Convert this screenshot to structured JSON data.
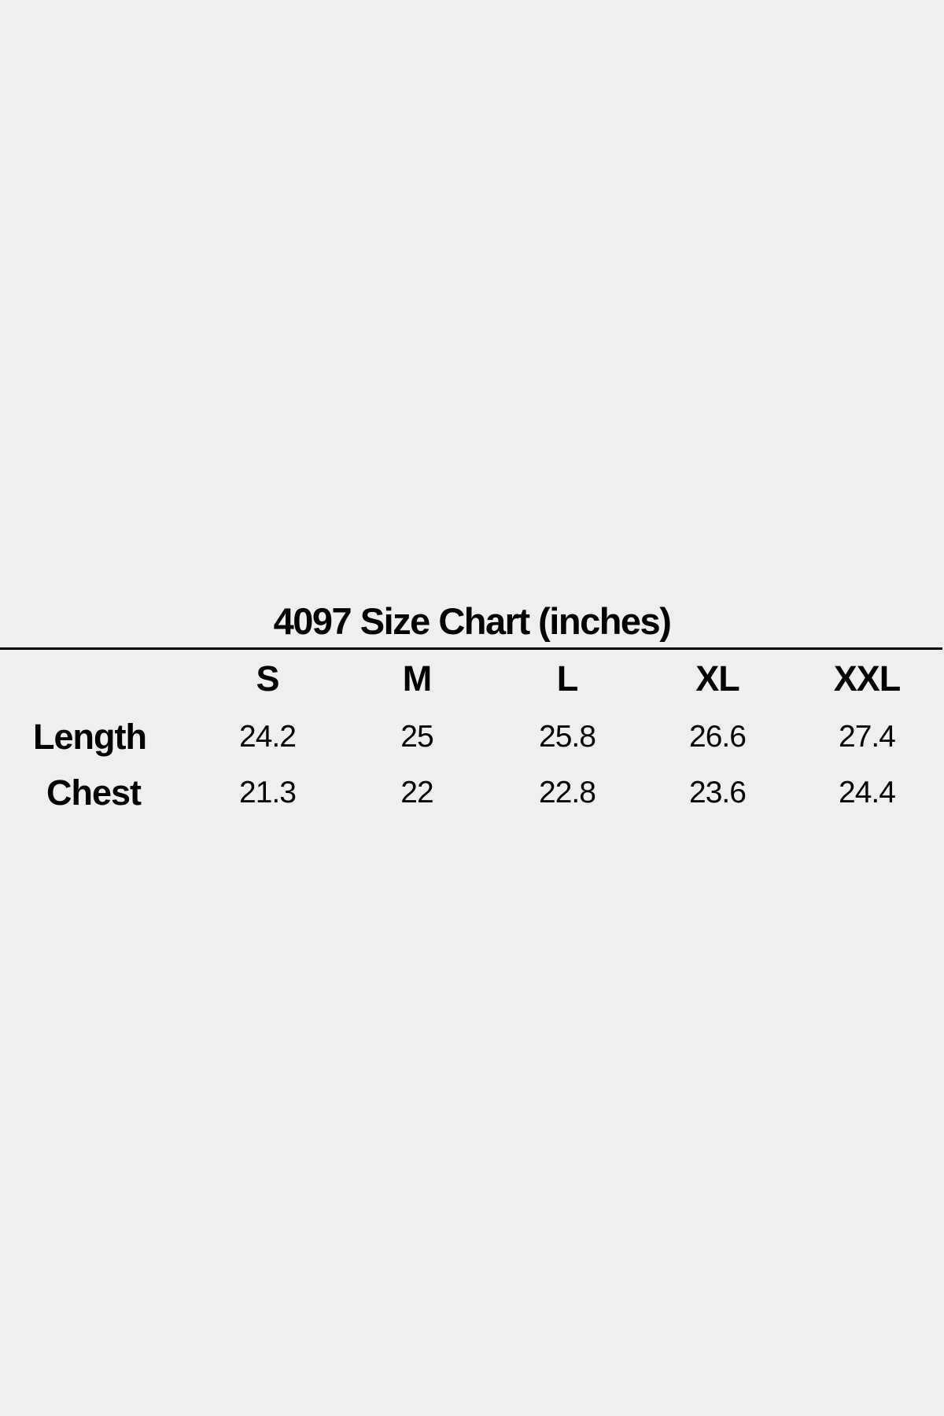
{
  "title": "4097 Size Chart (inches)",
  "sizes": [
    "S",
    "M",
    "L",
    "XL",
    "XXL"
  ],
  "rows": [
    {
      "label": "Length",
      "values": [
        "24.2",
        "25",
        "25.8",
        "26.6",
        "27.4"
      ]
    },
    {
      "label": "Chest",
      "values": [
        "21.3",
        "22",
        "22.8",
        "23.6",
        "24.4"
      ]
    }
  ]
}
